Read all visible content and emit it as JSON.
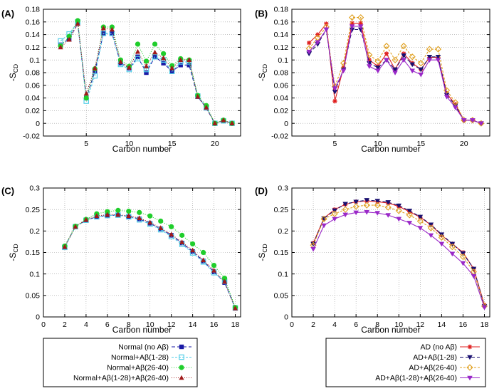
{
  "chart_data": [
    {
      "id": "A",
      "type": "line",
      "panel_label": "(A)",
      "xlabel": "Carbon number",
      "ylabel": "-S",
      "ylabel_sub": "CD",
      "xlim": [
        0,
        23
      ],
      "ylim": [
        -0.02,
        0.18
      ],
      "xticks": [
        5,
        10,
        15,
        20
      ],
      "yticks": [
        -0.02,
        0,
        0.02,
        0.04,
        0.06,
        0.08,
        0.1,
        0.12,
        0.14,
        0.16,
        0.18
      ],
      "ytick_labels": [
        "-0.02",
        "0",
        "0.02",
        "0.04",
        "0.06",
        "0.08",
        "0.1",
        "0.12",
        "0.14",
        "0.16",
        "0.18"
      ],
      "grid": true,
      "x": [
        2,
        3,
        4,
        5,
        6,
        7,
        8,
        9,
        10,
        11,
        12,
        13,
        14,
        15,
        16,
        17,
        18,
        19,
        20,
        21,
        22
      ],
      "series": [
        {
          "name": "Normal (no Aβ)",
          "color": "#1a1aa6",
          "marker": "square",
          "dash": "5,3",
          "values": [
            0.124,
            0.133,
            0.158,
            0.04,
            0.082,
            0.142,
            0.142,
            0.095,
            0.087,
            0.105,
            0.08,
            0.105,
            0.095,
            0.082,
            0.092,
            0.092,
            0.042,
            0.024,
            0.0,
            0.004,
            0.0
          ]
        },
        {
          "name": "Normal+Aβ(1-28)",
          "color": "#55cfe8",
          "marker": "square-open",
          "dash": "3,2",
          "values": [
            0.13,
            0.141,
            0.16,
            0.035,
            0.075,
            0.142,
            0.142,
            0.093,
            0.085,
            0.102,
            0.085,
            0.105,
            0.1,
            0.082,
            0.097,
            0.097,
            0.043,
            0.025,
            0.0,
            0.004,
            0.0
          ]
        },
        {
          "name": "Normal+Aβ(26-40)",
          "color": "#1fce2b",
          "marker": "circle",
          "dash": "1,2",
          "values": [
            0.122,
            0.137,
            0.162,
            0.04,
            0.086,
            0.152,
            0.152,
            0.1,
            0.09,
            0.125,
            0.098,
            0.125,
            0.11,
            0.091,
            0.102,
            0.1,
            0.044,
            0.028,
            0.0,
            0.005,
            0.0
          ]
        },
        {
          "name": "Normal+Aβ(1-28)+Aβ(26-40)",
          "color": "#a01a1a",
          "marker": "triangle",
          "dash": "1,2",
          "values": [
            0.12,
            0.132,
            0.157,
            0.047,
            0.087,
            0.15,
            0.148,
            0.097,
            0.088,
            0.113,
            0.09,
            0.112,
            0.103,
            0.087,
            0.1,
            0.1,
            0.042,
            0.025,
            0.0,
            0.005,
            0.0
          ]
        }
      ]
    },
    {
      "id": "B",
      "type": "line",
      "panel_label": "(B)",
      "xlabel": "Carbon number",
      "ylabel": "-S",
      "ylabel_sub": "CD",
      "xlim": [
        0,
        23
      ],
      "ylim": [
        -0.02,
        0.18
      ],
      "xticks": [
        5,
        10,
        15,
        20
      ],
      "yticks": [
        -0.02,
        0,
        0.02,
        0.04,
        0.06,
        0.08,
        0.1,
        0.12,
        0.14,
        0.16,
        0.18
      ],
      "ytick_labels": [
        "-0.02",
        "0",
        "0.02",
        "0.04",
        "0.06",
        "0.08",
        "0.1",
        "0.12",
        "0.14",
        "0.16",
        "0.18"
      ],
      "grid": true,
      "x": [
        2,
        3,
        4,
        5,
        6,
        7,
        8,
        9,
        10,
        11,
        12,
        13,
        14,
        15,
        16,
        17,
        18,
        19,
        20,
        21,
        22
      ],
      "series": [
        {
          "name": "AD (no Aβ)",
          "color": "#e02020",
          "marker": "star",
          "dash": "",
          "values": [
            0.127,
            0.14,
            0.157,
            0.035,
            0.088,
            0.158,
            0.158,
            0.1,
            0.09,
            0.11,
            0.085,
            0.11,
            0.095,
            0.085,
            0.104,
            0.104,
            0.047,
            0.03,
            0.005,
            0.005,
            0.0
          ]
        },
        {
          "name": "AD+Aβ(1-28)",
          "color": "#1a1070",
          "marker": "triangle-down",
          "dash": "5,3",
          "values": [
            0.11,
            0.125,
            0.148,
            0.05,
            0.085,
            0.148,
            0.148,
            0.095,
            0.088,
            0.1,
            0.085,
            0.107,
            0.093,
            0.085,
            0.105,
            0.105,
            0.045,
            0.028,
            0.005,
            0.005,
            0.0
          ]
        },
        {
          "name": "AD+Aβ(26-40)",
          "color": "#e0a020",
          "marker": "diamond-open",
          "dash": "3,2",
          "values": [
            0.118,
            0.135,
            0.152,
            0.058,
            0.095,
            0.167,
            0.167,
            0.108,
            0.098,
            0.122,
            0.1,
            0.122,
            0.105,
            0.095,
            0.117,
            0.117,
            0.052,
            0.033,
            0.005,
            0.005,
            0.0
          ]
        },
        {
          "name": "AD+Aβ(1-28)+Aβ(26-40)",
          "color": "#9a28c8",
          "marker": "triangle-down",
          "dash": "",
          "values": [
            0.113,
            0.128,
            0.148,
            0.055,
            0.083,
            0.153,
            0.153,
            0.09,
            0.083,
            0.1,
            0.08,
            0.1,
            0.083,
            0.077,
            0.1,
            0.1,
            0.042,
            0.025,
            0.005,
            0.005,
            0.0
          ]
        }
      ]
    },
    {
      "id": "C",
      "type": "line",
      "panel_label": "(C)",
      "xlabel": "Carbon number",
      "ylabel": "-S",
      "ylabel_sub": "CD",
      "xlim": [
        0,
        18.5
      ],
      "ylim": [
        0,
        0.3
      ],
      "xticks": [
        0,
        2,
        4,
        6,
        8,
        10,
        12,
        14,
        16,
        18
      ],
      "yticks": [
        0,
        0.05,
        0.1,
        0.15,
        0.2,
        0.25,
        0.3
      ],
      "ytick_labels": [
        "0",
        "0.05",
        "0.1",
        "0.15",
        "0.2",
        "0.25",
        "0.3"
      ],
      "grid": true,
      "x": [
        2,
        3,
        4,
        5,
        6,
        7,
        8,
        9,
        10,
        11,
        12,
        13,
        14,
        15,
        16,
        17,
        18
      ],
      "series": [
        {
          "name": "Normal (no Aβ)",
          "color": "#1a1aa6",
          "marker": "square",
          "dash": "5,3",
          "values": [
            0.163,
            0.21,
            0.225,
            0.233,
            0.236,
            0.237,
            0.234,
            0.228,
            0.218,
            0.205,
            0.19,
            0.172,
            0.152,
            0.13,
            0.105,
            0.08,
            0.02
          ]
        },
        {
          "name": "Normal+Aβ(1-28)",
          "color": "#55cfe8",
          "marker": "square-open",
          "dash": "3,2",
          "values": [
            0.162,
            0.21,
            0.225,
            0.233,
            0.236,
            0.237,
            0.233,
            0.226,
            0.216,
            0.203,
            0.187,
            0.169,
            0.149,
            0.128,
            0.103,
            0.083,
            0.021
          ]
        },
        {
          "name": "Normal+Aβ(26-40)",
          "color": "#1fce2b",
          "marker": "circle",
          "dash": "1,2",
          "values": [
            0.165,
            0.211,
            0.227,
            0.24,
            0.245,
            0.248,
            0.246,
            0.243,
            0.235,
            0.223,
            0.21,
            0.19,
            0.17,
            0.15,
            0.12,
            0.09,
            0.022
          ]
        },
        {
          "name": "Normal+Aβ(1-28)+Aβ(26-40)",
          "color": "#a01a1a",
          "marker": "triangle",
          "dash": "1,2",
          "values": [
            0.163,
            0.21,
            0.226,
            0.235,
            0.238,
            0.238,
            0.235,
            0.23,
            0.22,
            0.207,
            0.192,
            0.174,
            0.155,
            0.132,
            0.108,
            0.082,
            0.02
          ]
        }
      ]
    },
    {
      "id": "D",
      "type": "line",
      "panel_label": "(D)",
      "xlabel": "Carbon number",
      "ylabel": "-S",
      "ylabel_sub": "CD",
      "xlim": [
        0,
        18.5
      ],
      "ylim": [
        0,
        0.3
      ],
      "xticks": [
        0,
        2,
        4,
        6,
        8,
        10,
        12,
        14,
        16,
        18
      ],
      "yticks": [
        0,
        0.05,
        0.1,
        0.15,
        0.2,
        0.25,
        0.3
      ],
      "ytick_labels": [
        "0",
        "0.05",
        "0.1",
        "0.15",
        "0.2",
        "0.25",
        "0.3"
      ],
      "grid": true,
      "x": [
        2,
        3,
        4,
        5,
        6,
        7,
        8,
        9,
        10,
        11,
        12,
        13,
        14,
        15,
        16,
        17,
        18
      ],
      "series": [
        {
          "name": "AD (no Aβ)",
          "color": "#e02020",
          "marker": "star",
          "dash": "",
          "values": [
            0.172,
            0.23,
            0.25,
            0.262,
            0.268,
            0.27,
            0.268,
            0.265,
            0.257,
            0.245,
            0.232,
            0.214,
            0.19,
            0.17,
            0.15,
            0.112,
            0.028
          ]
        },
        {
          "name": "AD+Aβ(1-28)",
          "color": "#1a1070",
          "marker": "triangle-down",
          "dash": "5,3",
          "values": [
            0.17,
            0.229,
            0.248,
            0.263,
            0.268,
            0.272,
            0.27,
            0.267,
            0.259,
            0.247,
            0.233,
            0.215,
            0.192,
            0.17,
            0.148,
            0.112,
            0.025
          ]
        },
        {
          "name": "AD+Aβ(26-40)",
          "color": "#e0a020",
          "marker": "diamond-open",
          "dash": "3,2",
          "values": [
            0.167,
            0.228,
            0.24,
            0.25,
            0.257,
            0.26,
            0.26,
            0.255,
            0.247,
            0.237,
            0.223,
            0.207,
            0.185,
            0.163,
            0.14,
            0.105,
            0.025
          ]
        },
        {
          "name": "AD+Aβ(1-28)+Aβ(26-40)",
          "color": "#9a28c8",
          "marker": "triangle-down",
          "dash": "",
          "values": [
            0.158,
            0.213,
            0.228,
            0.238,
            0.243,
            0.244,
            0.242,
            0.237,
            0.228,
            0.219,
            0.207,
            0.19,
            0.17,
            0.147,
            0.125,
            0.095,
            0.022
          ]
        }
      ]
    }
  ],
  "legends": [
    {
      "id": "legend-normal",
      "entries": [
        "Normal (no Aβ)",
        "Normal+Aβ(1-28)",
        "Normal+Aβ(26-40)",
        "Normal+Aβ(1-28)+Aβ(26-40)"
      ]
    },
    {
      "id": "legend-ad",
      "entries": [
        "AD (no Aβ)",
        "AD+Aβ(1-28)",
        "AD+Aβ(26-40)",
        "AD+Aβ(1-28)+Aβ(26-40)"
      ]
    }
  ]
}
